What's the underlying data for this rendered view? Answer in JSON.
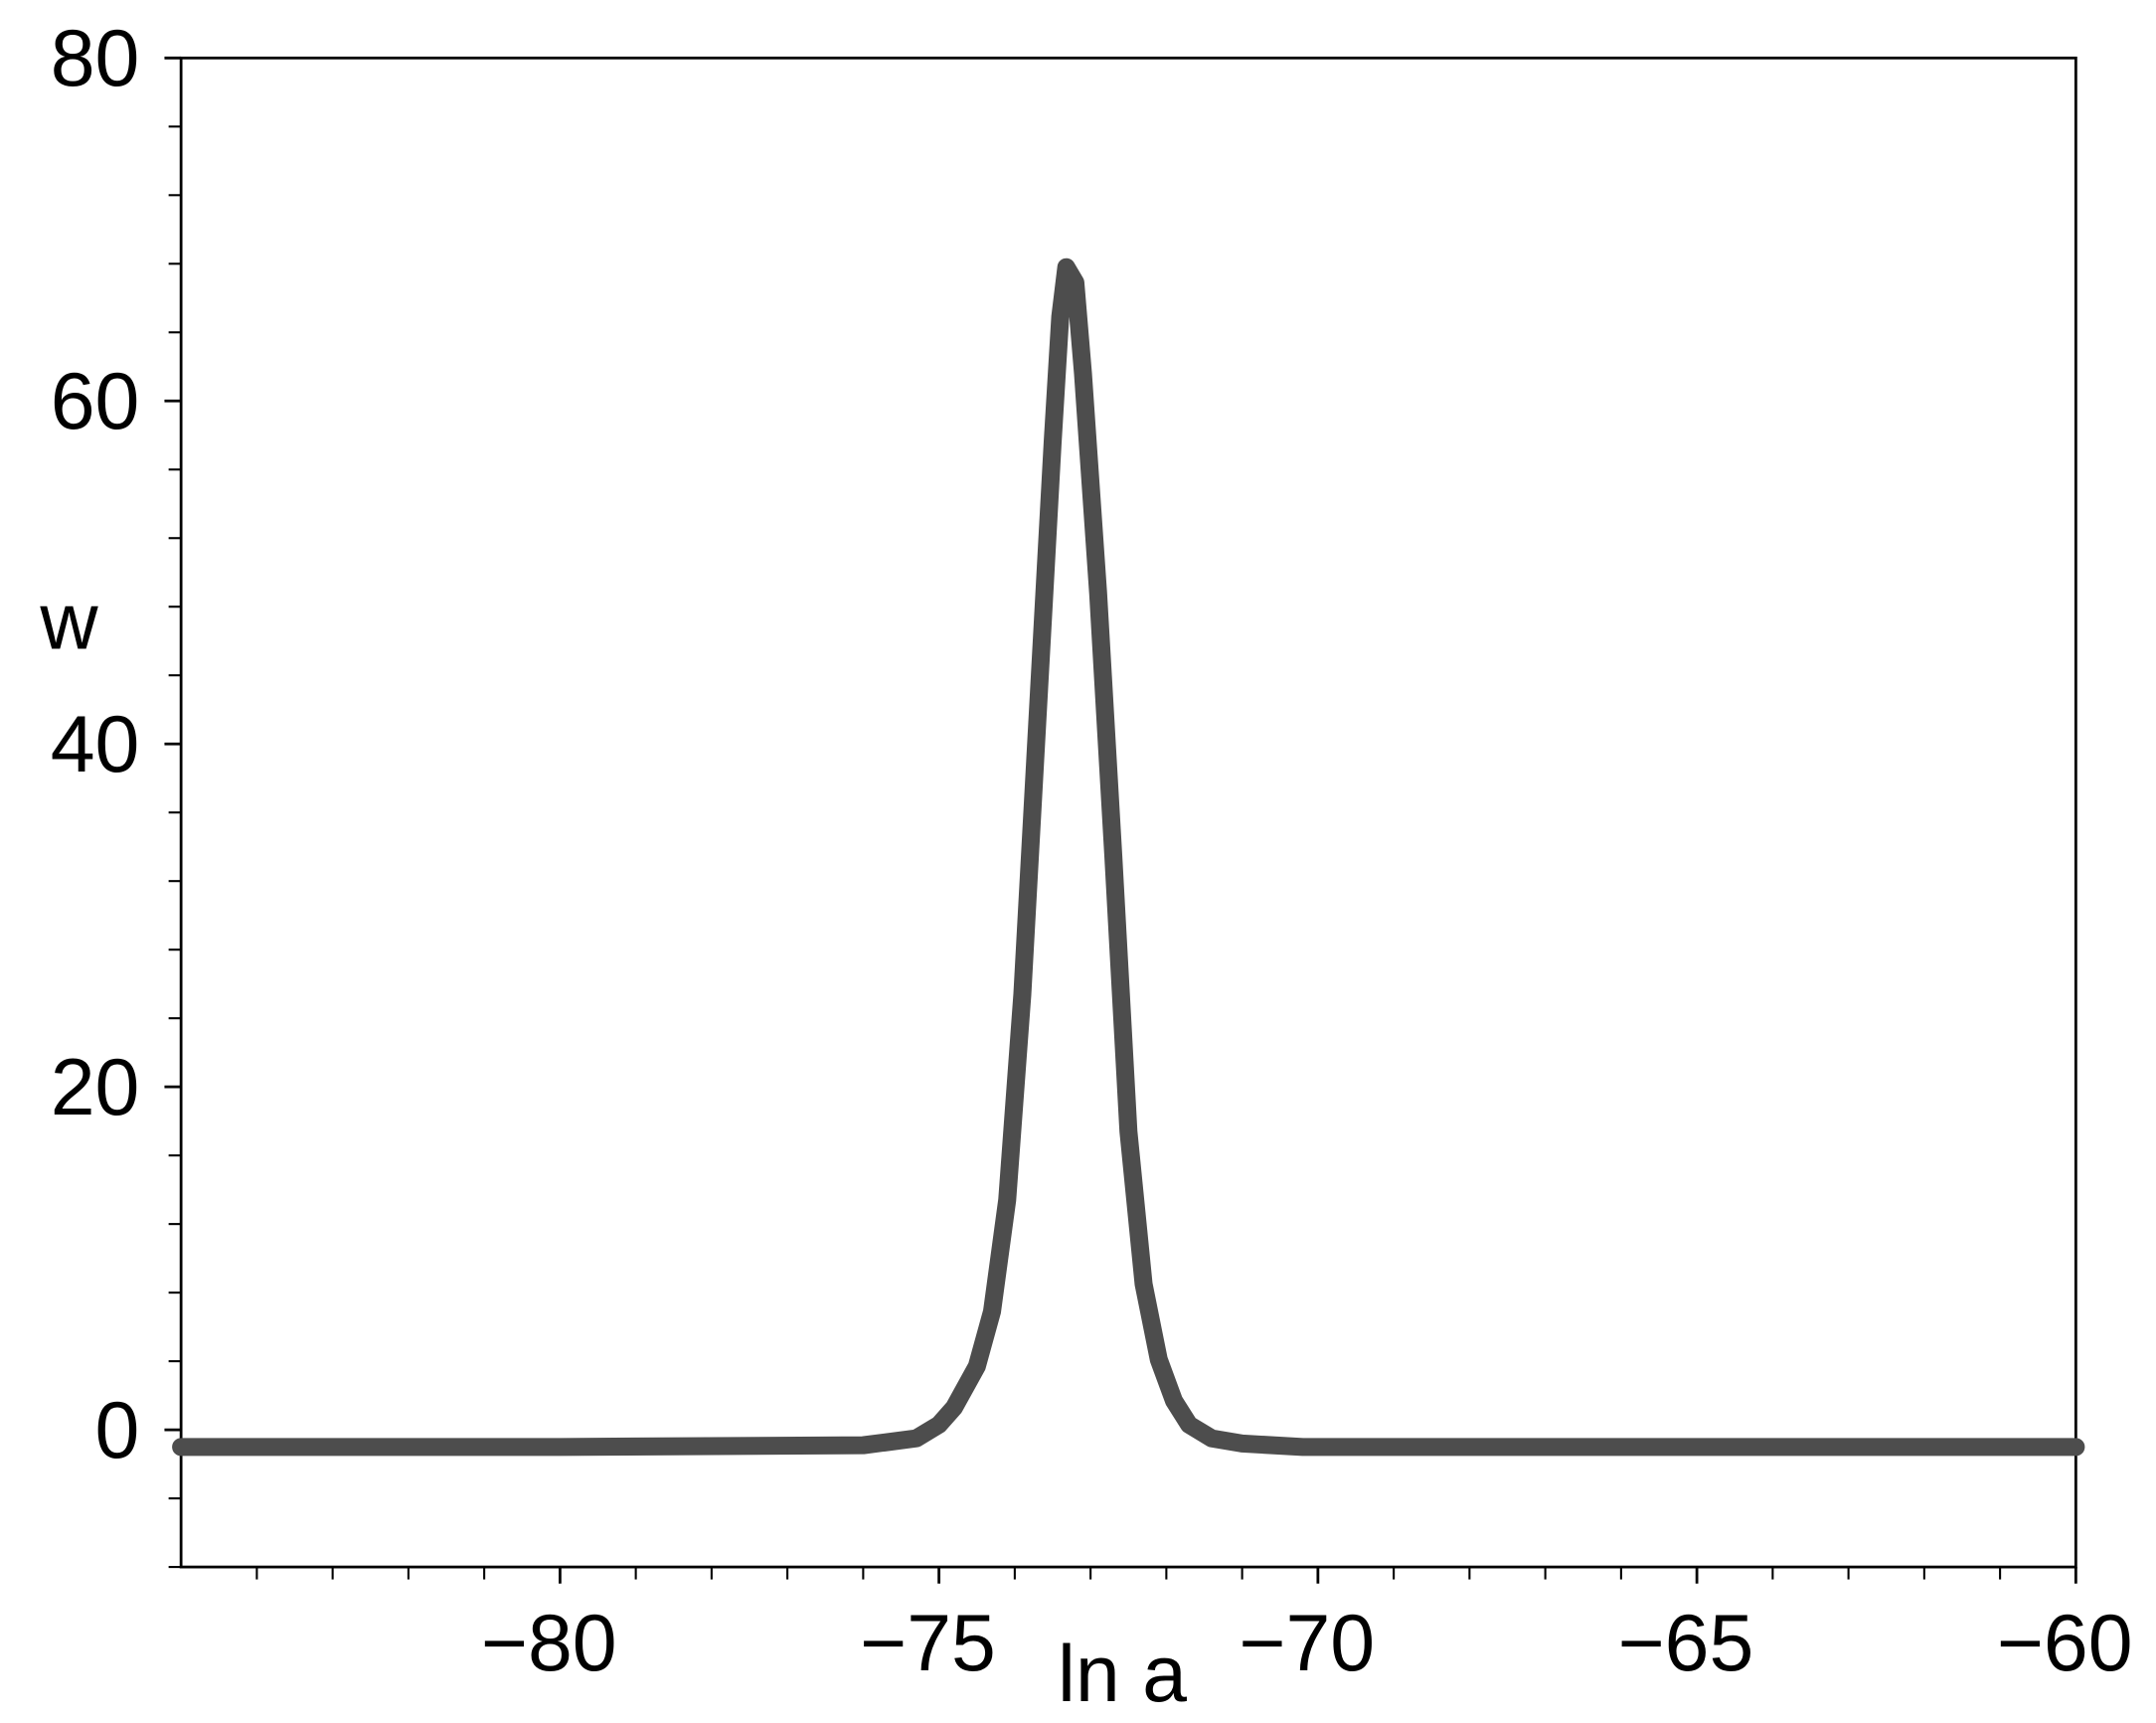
{
  "chart_data": {
    "type": "line",
    "x_label": "ln a",
    "y_label": "w",
    "x": [
      -85,
      -80,
      -76,
      -75.3,
      -75,
      -74.8,
      -74.5,
      -74.3,
      -74.1,
      -73.9,
      -73.7,
      -73.5,
      -73.4,
      -73.32,
      -73.2,
      -73.1,
      -72.9,
      -72.7,
      -72.5,
      -72.3,
      -72.1,
      -71.9,
      -71.7,
      -71.4,
      -71,
      -70.2,
      -65,
      -60
    ],
    "series": [
      {
        "color": "#4d4d4d",
        "values": [
          -1,
          -1,
          -0.9,
          -0.5,
          0.3,
          1.3,
          3.7,
          6.9,
          13.4,
          25.4,
          41.5,
          57.6,
          64.9,
          67.8,
          66.9,
          61.6,
          48.8,
          33.5,
          17.4,
          8.5,
          4.1,
          1.7,
          0.3,
          -0.5,
          -0.8,
          -1,
          -1,
          -1
        ]
      }
    ],
    "xlim": [
      -85,
      -60
    ],
    "ylim": [
      -8,
      80
    ],
    "xticks": [
      {
        "value": -80,
        "label": "−80"
      },
      {
        "value": -75,
        "label": "−75"
      },
      {
        "value": -70,
        "label": "−70"
      },
      {
        "value": -65,
        "label": "−65"
      },
      {
        "value": -60,
        "label": "−60"
      }
    ],
    "yticks": [
      0,
      20,
      40,
      60,
      80
    ],
    "xminorticks": [
      -84,
      -83,
      -82,
      -81,
      -79,
      -78,
      -77,
      -76,
      -74,
      -73,
      -72,
      -71,
      -69,
      -68,
      -67,
      -66,
      -64,
      -63,
      -62,
      -61
    ],
    "yminorticks": [
      -8,
      -4,
      4,
      8,
      12,
      16,
      24,
      28,
      32,
      36,
      44,
      48,
      52,
      56,
      64,
      68,
      72,
      76
    ],
    "grid": false
  }
}
